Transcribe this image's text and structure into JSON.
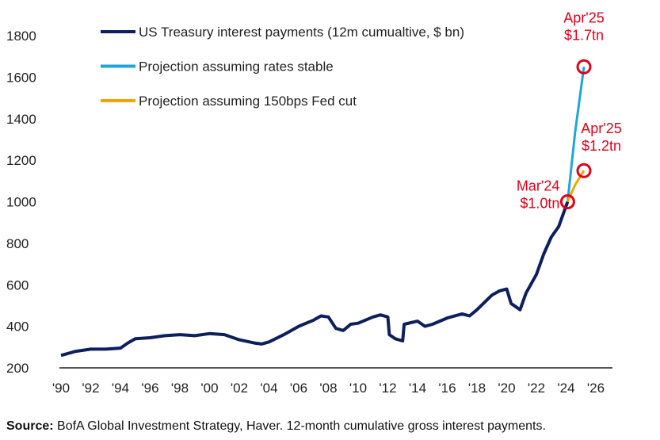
{
  "chart_data": {
    "type": "line",
    "title": "",
    "xlabel": "",
    "ylabel": "",
    "xlim": [
      1990,
      2026
    ],
    "ylim": [
      200,
      1800
    ],
    "x_ticks": [
      "'90",
      "'92",
      "'94",
      "'96",
      "'98",
      "'00",
      "'02",
      "'04",
      "'06",
      "'08",
      "'10",
      "'12",
      "'14",
      "'16",
      "'18",
      "'20",
      "'22",
      "'24",
      "'26"
    ],
    "y_ticks": [
      200,
      400,
      600,
      800,
      1000,
      1200,
      1400,
      1600,
      1800
    ],
    "grid": false,
    "legend_position": "top-left",
    "series": [
      {
        "name": "US Treasury interest payments (12m cumualtive, $ bn)",
        "color": "#0d1f5c",
        "x": [
          1990.0,
          1991,
          1992,
          1993,
          1994,
          1994.5,
          1995,
          1996,
          1997,
          1998,
          1999,
          2000,
          2001,
          2002,
          2003,
          2003.5,
          2004,
          2005,
          2006,
          2007,
          2007.5,
          2008,
          2008.5,
          2009,
          2009.5,
          2010,
          2011,
          2011.5,
          2012,
          2012.1,
          2012.5,
          2013,
          2013.1,
          2014,
          2014.5,
          2015,
          2016,
          2017,
          2017.5,
          2018,
          2019,
          2019.5,
          2020,
          2020.3,
          2020.9,
          2021.3,
          2022,
          2022.5,
          2023,
          2023.5,
          2024.1
        ],
        "y": [
          260,
          280,
          290,
          290,
          295,
          320,
          340,
          345,
          355,
          360,
          355,
          365,
          360,
          335,
          320,
          315,
          325,
          360,
          400,
          430,
          450,
          445,
          390,
          380,
          410,
          415,
          445,
          455,
          445,
          360,
          340,
          330,
          410,
          425,
          400,
          410,
          440,
          460,
          450,
          480,
          550,
          570,
          580,
          510,
          480,
          560,
          650,
          750,
          830,
          880,
          1000
        ]
      },
      {
        "name": "Projection assuming rates stable",
        "color": "#1ea6dc",
        "x": [
          2024.1,
          2024.6,
          2025.2
        ],
        "y": [
          1000,
          1330,
          1650
        ]
      },
      {
        "name": "Projection assuming 150bps Fed cut",
        "color": "#f0a500",
        "x": [
          2024.1,
          2024.6,
          2025.2
        ],
        "y": [
          1000,
          1080,
          1150
        ]
      }
    ],
    "annotations": [
      {
        "lines": [
          "Mar'24",
          "$1.0tn"
        ],
        "x": 2024.1,
        "y": 1000
      },
      {
        "lines": [
          "Apr'25",
          "$1.7tn"
        ],
        "x": 2025.2,
        "y": 1650
      },
      {
        "lines": [
          "Apr'25",
          "$1.2tn"
        ],
        "x": 2025.2,
        "y": 1150
      }
    ],
    "annotation_color": "#e0001b"
  },
  "source": {
    "label": "Source:",
    "text": " BofA Global Investment Strategy, Haver. 12-month cumulative gross interest payments."
  }
}
